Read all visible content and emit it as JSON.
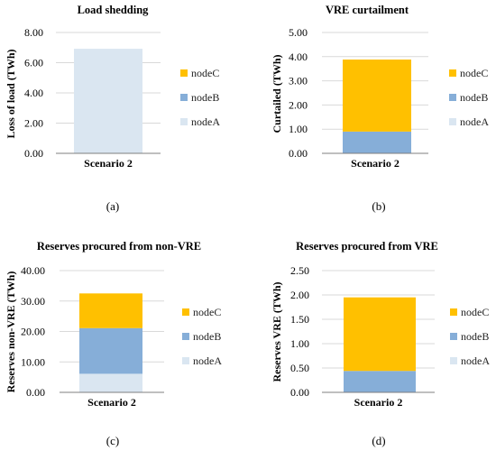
{
  "colors": {
    "nodeA": "#dae6f1",
    "nodeB": "#86aed8",
    "nodeC": "#ffc000",
    "grid": "#d9d9d9",
    "axis": "#7f7f7f"
  },
  "chart_data": [
    {
      "type": "bar",
      "stacked": true,
      "title": "Load shedding",
      "ylabel": "Loss of load (TWh)",
      "categories": [
        "Scenario 2"
      ],
      "ylim": [
        0,
        8
      ],
      "yticks": [
        "0.00",
        "2.00",
        "4.00",
        "6.00",
        "8.00"
      ],
      "series": [
        {
          "name": "nodeA",
          "values": [
            6.92
          ]
        },
        {
          "name": "nodeB",
          "values": [
            0
          ]
        },
        {
          "name": "nodeC",
          "values": [
            0
          ]
        }
      ],
      "legend": [
        "nodeC",
        "nodeB",
        "nodeA"
      ],
      "caption": "(a)"
    },
    {
      "type": "bar",
      "stacked": true,
      "title": "VRE curtailment",
      "ylabel": "Curtailed (TWh)",
      "categories": [
        "Scenario 2"
      ],
      "ylim": [
        0,
        5
      ],
      "yticks": [
        "0.00",
        "1.00",
        "2.00",
        "3.00",
        "4.00",
        "5.00"
      ],
      "series": [
        {
          "name": "nodeA",
          "values": [
            0
          ]
        },
        {
          "name": "nodeB",
          "values": [
            0.9
          ]
        },
        {
          "name": "nodeC",
          "values": [
            2.98
          ]
        }
      ],
      "legend": [
        "nodeC",
        "nodeB",
        "nodeA"
      ],
      "caption": "(b)"
    },
    {
      "type": "bar",
      "stacked": true,
      "title": "Reserves procured from non-VRE",
      "ylabel": "Reserves non-VRE (TWh)",
      "categories": [
        "Scenario 2"
      ],
      "ylim": [
        0,
        40
      ],
      "yticks": [
        "0.00",
        "10.00",
        "20.00",
        "30.00",
        "40.00"
      ],
      "series": [
        {
          "name": "nodeA",
          "values": [
            6.1
          ]
        },
        {
          "name": "nodeB",
          "values": [
            15.0
          ]
        },
        {
          "name": "nodeC",
          "values": [
            11.4
          ]
        }
      ],
      "legend": [
        "nodeC",
        "nodeB",
        "nodeA"
      ],
      "caption": "(c)"
    },
    {
      "type": "bar",
      "stacked": true,
      "title": "Reserves procured from VRE",
      "ylabel": "Reserves VRE (TWh)",
      "categories": [
        "Scenario 2"
      ],
      "ylim": [
        0,
        2.5
      ],
      "yticks": [
        "0.00",
        "0.50",
        "1.00",
        "1.50",
        "2.00",
        "2.50"
      ],
      "series": [
        {
          "name": "nodeA",
          "values": [
            0
          ]
        },
        {
          "name": "nodeB",
          "values": [
            0.44
          ]
        },
        {
          "name": "nodeC",
          "values": [
            1.51
          ]
        }
      ],
      "legend": [
        "nodeC",
        "nodeB",
        "nodeA"
      ],
      "caption": "(d)"
    }
  ]
}
